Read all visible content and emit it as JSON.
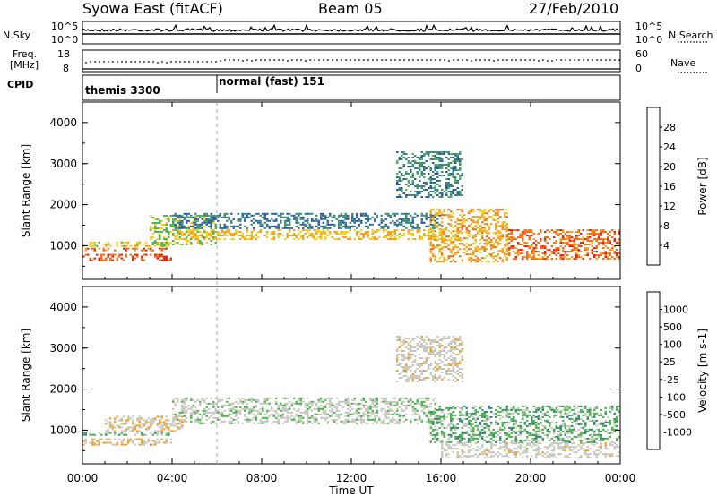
{
  "header": {
    "station": "Syowa East (fitACF)",
    "beam": "Beam 05",
    "date": "27/Feb/2010"
  },
  "top_panels": {
    "nsky_label": "N.Sky",
    "nsky_ticks": [
      "10^5",
      "10^0"
    ],
    "nsearch_label": "N.Search",
    "nsearch_ticks": [
      "10^5",
      "10^0"
    ],
    "freq_label_line1": "Freq.",
    "freq_label_line2": "[MHz]",
    "freq_ticks": [
      "18",
      "8"
    ],
    "nave_label": "Nave",
    "nave_ticks": [
      "60",
      "0"
    ],
    "cpid_label": "CPID",
    "modes": [
      {
        "name": "themis 3300",
        "start_hour": 0,
        "end_hour": 6
      },
      {
        "name": "normal (fast) 151",
        "start_hour": 6,
        "end_hour": 24
      }
    ]
  },
  "colors": {
    "power": [
      "#1c3fd6",
      "#2c5aa8",
      "#3c8a78",
      "#52b45a",
      "#f0d020",
      "#f2a020",
      "#f26a18",
      "#e02010"
    ],
    "velocity": [
      "#e01010",
      "#f05a18",
      "#f5a020",
      "#c8c8c0",
      "#c8c8c0",
      "#4cb44c",
      "#2e8a72",
      "#2c64a8",
      "#1c3fd6"
    ]
  },
  "chart_data": [
    {
      "type": "heatmap",
      "name": "power",
      "xlabel": "Time UT",
      "ylabel": "Slant Range [km]",
      "xlim": [
        0,
        24
      ],
      "ylim": [
        180,
        4500
      ],
      "xticks": [
        "00:00",
        "04:00",
        "08:00",
        "12:00",
        "16:00",
        "20:00",
        "00:00"
      ],
      "yticks": [
        "1000",
        "2000",
        "3000",
        "4000"
      ],
      "colorbar_label": "Power [dB]",
      "colorbar_ticks": [
        "4",
        "8",
        "12",
        "16",
        "20",
        "24",
        "28"
      ],
      "colorbar_range": [
        0,
        32
      ],
      "echo_bands": [
        {
          "hours": [
            0,
            4
          ],
          "range_km": [
            650,
            800
          ],
          "level": 28
        },
        {
          "hours": [
            0,
            4
          ],
          "range_km": [
            880,
            950
          ],
          "level": 26
        },
        {
          "hours": [
            0,
            4
          ],
          "range_km": [
            1000,
            1100
          ],
          "level": 18
        },
        {
          "hours": [
            3,
            6
          ],
          "range_km": [
            1050,
            1750
          ],
          "level": 16
        },
        {
          "hours": [
            4,
            16
          ],
          "range_km": [
            1150,
            1400
          ],
          "level": 20
        },
        {
          "hours": [
            4,
            16
          ],
          "range_km": [
            1450,
            1800
          ],
          "level": 8
        },
        {
          "hours": [
            15.5,
            19
          ],
          "range_km": [
            600,
            1900
          ],
          "level": 22
        },
        {
          "hours": [
            19,
            24
          ],
          "range_km": [
            700,
            1400
          ],
          "level": 26
        },
        {
          "hours": [
            14,
            17
          ],
          "range_km": [
            2200,
            3300
          ],
          "level": 10
        }
      ]
    },
    {
      "type": "heatmap",
      "name": "velocity",
      "xlabel": "Time UT",
      "ylabel": "Slant Range [km]",
      "xlim": [
        0,
        24
      ],
      "ylim": [
        180,
        4500
      ],
      "xticks": [
        "00:00",
        "04:00",
        "08:00",
        "12:00",
        "16:00",
        "20:00",
        "00:00"
      ],
      "yticks": [
        "1000",
        "2000",
        "3000",
        "4000"
      ],
      "colorbar_label": "Velocity [m s-1]",
      "colorbar_ticks": [
        "1000",
        "500",
        "100",
        "25",
        "-25",
        "-100",
        "-500",
        "-1000"
      ],
      "colorbar_range": [
        -1200,
        1200
      ],
      "echo_bands": [
        {
          "hours": [
            0,
            4
          ],
          "range_km": [
            650,
            800
          ],
          "level": -400
        },
        {
          "hours": [
            0,
            4
          ],
          "range_km": [
            880,
            950
          ],
          "level": 200
        },
        {
          "hours": [
            1,
            4.5
          ],
          "range_km": [
            1000,
            1350
          ],
          "level": -300
        },
        {
          "hours": [
            4,
            16
          ],
          "range_km": [
            1150,
            1800
          ],
          "level": 0
        },
        {
          "hours": [
            15.5,
            24
          ],
          "range_km": [
            700,
            1600
          ],
          "level": 250
        },
        {
          "hours": [
            16,
            24
          ],
          "range_km": [
            350,
            700
          ],
          "level": -150
        },
        {
          "hours": [
            14,
            17
          ],
          "range_km": [
            2200,
            3300
          ],
          "level": -200
        }
      ]
    }
  ]
}
